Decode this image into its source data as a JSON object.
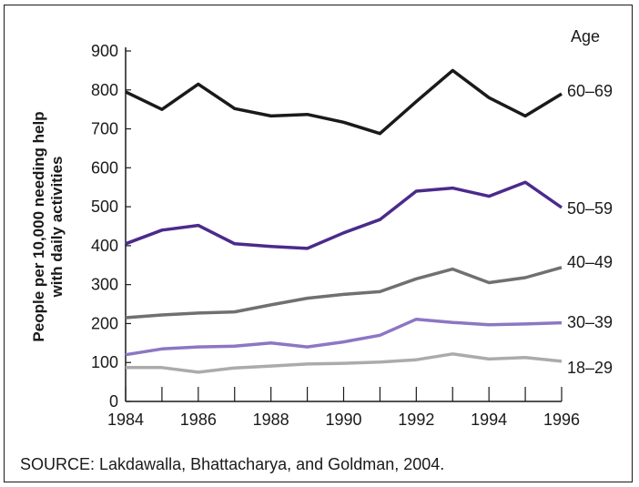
{
  "chart_data": {
    "type": "line",
    "x": [
      1984,
      1985,
      1986,
      1987,
      1988,
      1989,
      1990,
      1991,
      1992,
      1993,
      1994,
      1995,
      1996
    ],
    "x_tick_labels": [
      "1984",
      "1986",
      "1988",
      "1990",
      "1992",
      "1994",
      "1996"
    ],
    "y_tick_labels": [
      "0",
      "100",
      "200",
      "300",
      "400",
      "500",
      "600",
      "700",
      "800",
      "900"
    ],
    "xlim": [
      1984,
      1996
    ],
    "ylim": [
      0,
      900
    ],
    "ylabel_lines": [
      "People per 10,000 needing help",
      "with daily activities"
    ],
    "legend_title": "Age",
    "legend_placement": "right, labels at line ends",
    "grid": false,
    "series": [
      {
        "name": "60–69",
        "color": "#1a1a1a",
        "values": [
          795,
          750,
          815,
          752,
          733,
          737,
          717,
          688,
          770,
          850,
          780,
          733,
          790
        ]
      },
      {
        "name": "50–59",
        "color": "#4b2a8c",
        "values": [
          405,
          440,
          452,
          405,
          398,
          393,
          433,
          467,
          540,
          548,
          527,
          563,
          498
        ]
      },
      {
        "name": "40–49",
        "color": "#707070",
        "values": [
          215,
          222,
          227,
          230,
          248,
          265,
          275,
          282,
          315,
          340,
          305,
          318,
          344
        ]
      },
      {
        "name": "30–39",
        "color": "#8d76c4",
        "values": [
          120,
          135,
          140,
          142,
          150,
          140,
          153,
          170,
          211,
          203,
          197,
          199,
          202
        ]
      },
      {
        "name": "18–29",
        "color": "#ababab",
        "values": [
          87,
          87,
          75,
          86,
          91,
          96,
          98,
          101,
          107,
          122,
          109,
          113,
          103
        ]
      }
    ]
  },
  "source_text": "SOURCE: Lakdawalla, Bhattacharya, and Goldman, 2004."
}
